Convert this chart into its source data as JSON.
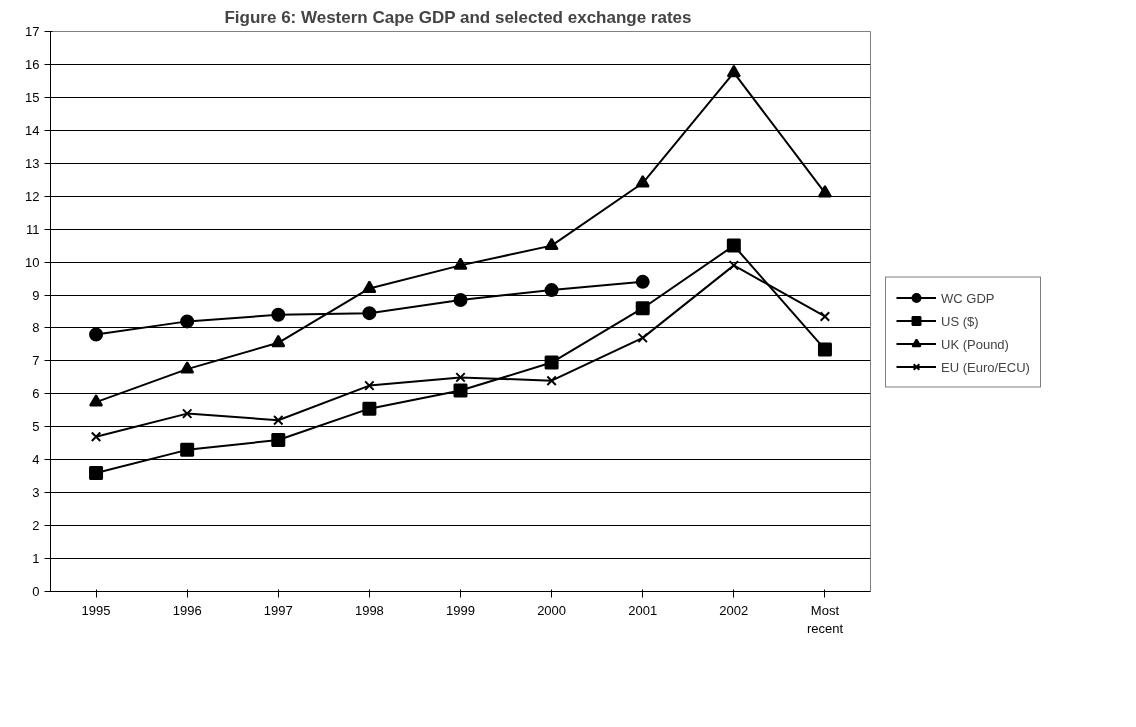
{
  "chart_data": {
    "type": "line",
    "title": "Figure 6:  Western Cape GDP and selected exchange rates",
    "categories": [
      "1995",
      "1996",
      "1997",
      "1998",
      "1999",
      "2000",
      "2001",
      "2002",
      "Most recent"
    ],
    "series": [
      {
        "name": "WC GDP",
        "color": "#000000",
        "marker": "circle",
        "values": [
          7.8,
          8.2,
          8.4,
          8.45,
          8.85,
          9.15,
          9.4,
          null,
          null
        ]
      },
      {
        "name": "US ($)",
        "color": "#000000",
        "marker": "square",
        "values": [
          3.6,
          4.3,
          4.6,
          5.55,
          6.1,
          6.95,
          8.6,
          10.5,
          7.35
        ]
      },
      {
        "name": "UK (Pound)",
        "color": "#000000",
        "marker": "triangle",
        "values": [
          5.75,
          6.75,
          7.55,
          9.2,
          9.9,
          10.5,
          12.4,
          15.75,
          12.1
        ]
      },
      {
        "name": "EU (Euro/ECU)",
        "color": "#000000",
        "marker": "cross",
        "values": [
          4.7,
          5.4,
          5.2,
          6.25,
          6.5,
          6.4,
          7.7,
          9.9,
          8.35
        ]
      }
    ],
    "ylim": [
      0,
      17
    ],
    "yticks": [
      0,
      1,
      2,
      3,
      4,
      5,
      6,
      7,
      8,
      9,
      10,
      11,
      12,
      13,
      14,
      15,
      16,
      17
    ],
    "grid": "y",
    "legend": "right",
    "line_style": "solid"
  }
}
